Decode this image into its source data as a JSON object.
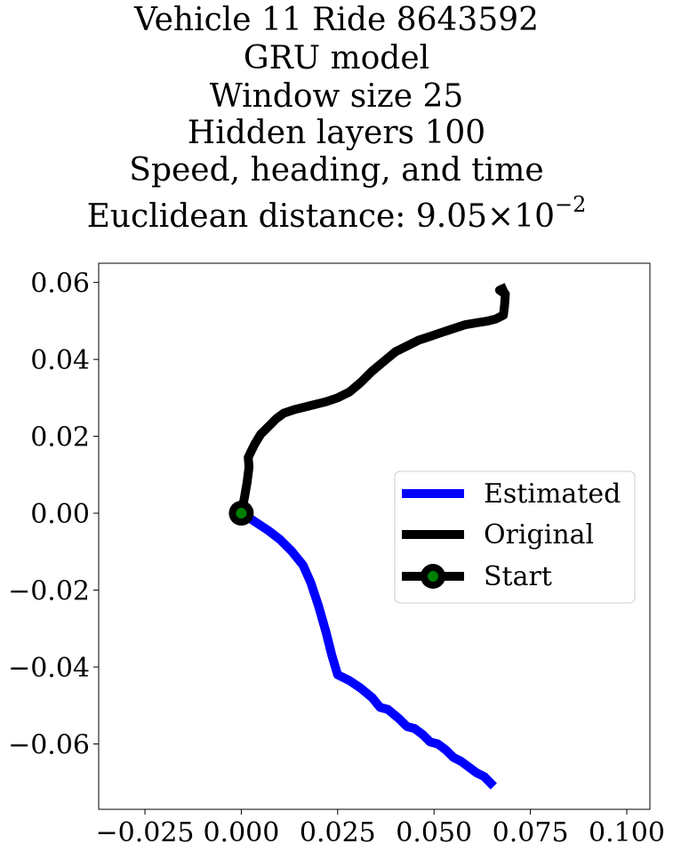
{
  "chart_data": {
    "type": "line",
    "title_lines": [
      "Vehicle 11 Ride 8643592",
      "GRU model",
      "Window size 25",
      "Hidden layers 100",
      "Speed, heading, and time"
    ],
    "title_distance": {
      "prefix": "Euclidean distance: ",
      "mantissa": "9.05",
      "times": "×",
      "base": "10",
      "exponent": "−2"
    },
    "xlabel": "",
    "ylabel": "",
    "xlim": [
      -0.037,
      0.106
    ],
    "ylim": [
      -0.077,
      0.065
    ],
    "x_ticks": [
      -0.025,
      0.0,
      0.025,
      0.05,
      0.075,
      0.1
    ],
    "x_tick_labels": [
      "−0.025",
      "0.000",
      "0.025",
      "0.050",
      "0.075",
      "0.100"
    ],
    "y_ticks": [
      0.06,
      0.04,
      0.02,
      0.0,
      -0.02,
      -0.04,
      -0.06
    ],
    "y_tick_labels": [
      "0.06",
      "0.04",
      "0.02",
      "0.00",
      "−0.02",
      "−0.04",
      "−0.06"
    ],
    "grid": false,
    "legend_position": "center-right",
    "series": [
      {
        "name": "Estimated",
        "color": "#0000ff",
        "points": [
          [
            0.0,
            0.0
          ],
          [
            0.002,
            -0.0012
          ],
          [
            0.004,
            -0.0025
          ],
          [
            0.007,
            -0.0045
          ],
          [
            0.01,
            -0.0068
          ],
          [
            0.013,
            -0.0098
          ],
          [
            0.016,
            -0.0135
          ],
          [
            0.018,
            -0.018
          ],
          [
            0.02,
            -0.024
          ],
          [
            0.022,
            -0.031
          ],
          [
            0.0235,
            -0.037
          ],
          [
            0.025,
            -0.042
          ],
          [
            0.028,
            -0.0435
          ],
          [
            0.031,
            -0.0455
          ],
          [
            0.034,
            -0.048
          ],
          [
            0.036,
            -0.0505
          ],
          [
            0.038,
            -0.051
          ],
          [
            0.041,
            -0.0535
          ],
          [
            0.043,
            -0.0555
          ],
          [
            0.045,
            -0.056
          ],
          [
            0.047,
            -0.0575
          ],
          [
            0.049,
            -0.0595
          ],
          [
            0.051,
            -0.06
          ],
          [
            0.053,
            -0.0615
          ],
          [
            0.055,
            -0.0635
          ],
          [
            0.057,
            -0.0645
          ],
          [
            0.059,
            -0.066
          ],
          [
            0.061,
            -0.0675
          ],
          [
            0.063,
            -0.0685
          ],
          [
            0.0655,
            -0.071
          ]
        ]
      },
      {
        "name": "Original",
        "color": "#000000",
        "points": [
          [
            0.0,
            0.0
          ],
          [
            0.0008,
            0.004
          ],
          [
            0.0015,
            0.008
          ],
          [
            0.002,
            0.012
          ],
          [
            0.0018,
            0.0145
          ],
          [
            0.0025,
            0.016
          ],
          [
            0.0035,
            0.018
          ],
          [
            0.005,
            0.0205
          ],
          [
            0.007,
            0.0225
          ],
          [
            0.009,
            0.0245
          ],
          [
            0.011,
            0.026
          ],
          [
            0.014,
            0.027
          ],
          [
            0.018,
            0.028
          ],
          [
            0.022,
            0.029
          ],
          [
            0.025,
            0.03
          ],
          [
            0.028,
            0.0315
          ],
          [
            0.031,
            0.034
          ],
          [
            0.034,
            0.037
          ],
          [
            0.037,
            0.0395
          ],
          [
            0.04,
            0.042
          ],
          [
            0.043,
            0.0435
          ],
          [
            0.046,
            0.045
          ],
          [
            0.049,
            0.046
          ],
          [
            0.052,
            0.047
          ],
          [
            0.055,
            0.048
          ],
          [
            0.058,
            0.049
          ],
          [
            0.061,
            0.0495
          ],
          [
            0.064,
            0.05
          ],
          [
            0.066,
            0.0505
          ],
          [
            0.068,
            0.0515
          ],
          [
            0.0683,
            0.054
          ],
          [
            0.0685,
            0.057
          ],
          [
            0.067,
            0.058
          ],
          [
            0.0688,
            0.0588
          ]
        ]
      }
    ],
    "start_marker": {
      "name": "Start",
      "x": 0.0,
      "y": 0.0,
      "edge_color": "#000000",
      "face_color": "#008000"
    },
    "legend_entries": [
      "Estimated",
      "Original",
      "Start"
    ]
  }
}
